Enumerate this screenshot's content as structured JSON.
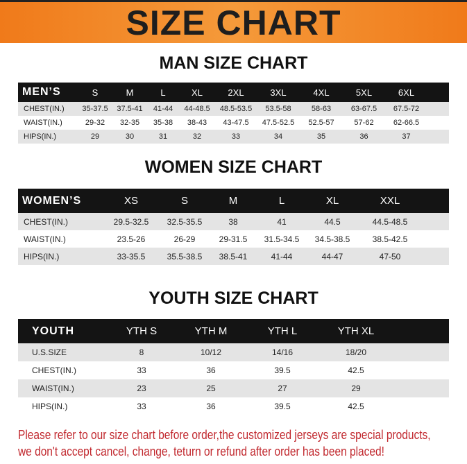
{
  "banner": "SIZE CHART",
  "men": {
    "title": "MAN SIZE CHART",
    "header": "MEN’S",
    "sizes": [
      "S",
      "M",
      "L",
      "XL",
      "2XL",
      "3XL",
      "4XL",
      "5XL",
      "6XL"
    ],
    "rows": [
      {
        "label": "CHEST(IN.)",
        "values": [
          "35-37.5",
          "37.5-41",
          "41-44",
          "44-48.5",
          "48.5-53.5",
          "53.5-58",
          "58-63",
          "63-67.5",
          "67.5-72"
        ]
      },
      {
        "label": "WAIST(IN.)",
        "values": [
          "29-32",
          "32-35",
          "35-38",
          "38-43",
          "43-47.5",
          "47.5-52.5",
          "52.5-57",
          "57-62",
          "62-66.5"
        ]
      },
      {
        "label": "HIPS(IN.)",
        "values": [
          "29",
          "30",
          "31",
          "32",
          "33",
          "34",
          "35",
          "36",
          "37"
        ]
      }
    ]
  },
  "women": {
    "title": "WOMEN SIZE CHART",
    "header": "WOMEN’S",
    "sizes": [
      "XS",
      "S",
      "M",
      "L",
      "XL",
      "XXL"
    ],
    "rows": [
      {
        "label": "CHEST(IN.)",
        "values": [
          "29.5-32.5",
          "32.5-35.5",
          "38",
          "41",
          "44.5",
          "44.5-48.5"
        ]
      },
      {
        "label": "WAIST(IN.)",
        "values": [
          "23.5-26",
          "26-29",
          "29-31.5",
          "31.5-34.5",
          "34.5-38.5",
          "38.5-42.5"
        ]
      },
      {
        "label": "HIPS(IN.)",
        "values": [
          "33-35.5",
          "35.5-38.5",
          "38.5-41",
          "41-44",
          "44-47",
          "47-50"
        ]
      }
    ]
  },
  "youth": {
    "title": "YOUTH SIZE CHART",
    "header": "YOUTH",
    "sizes": [
      "YTH S",
      "YTH M",
      "YTH L",
      "YTH XL"
    ],
    "rows": [
      {
        "label": "U.S.SIZE",
        "values": [
          "8",
          "10/12",
          "14/16",
          "18/20"
        ]
      },
      {
        "label": "CHEST(IN.)",
        "values": [
          "33",
          "36",
          "39.5",
          "42.5"
        ]
      },
      {
        "label": "WAIST(IN.)",
        "values": [
          "23",
          "25",
          "27",
          "29"
        ]
      },
      {
        "label": "HIPS(IN.)",
        "values": [
          "33",
          "36",
          "39.5",
          "42.5"
        ]
      }
    ]
  },
  "notice": [
    "Please refer to our size chart before order,the customized jerseys are special products,",
    "we don't accept cancel, change, teturn or refund after order has been placed!"
  ]
}
